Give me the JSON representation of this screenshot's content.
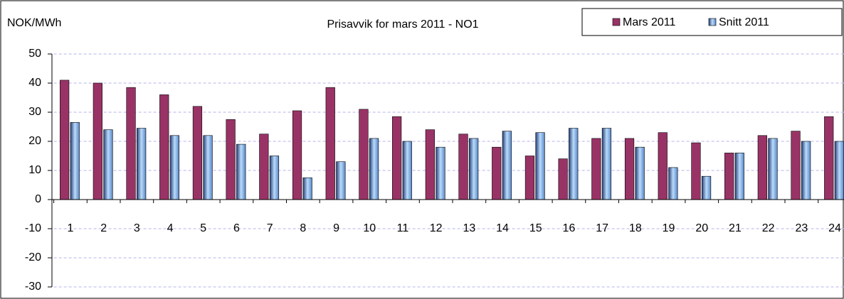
{
  "chart_data": {
    "type": "bar",
    "title": "Prisavvik for mars 2011 - NO1",
    "y_label": "NOK/MWh",
    "categories": [
      "1",
      "2",
      "3",
      "4",
      "5",
      "6",
      "7",
      "8",
      "9",
      "10",
      "11",
      "12",
      "13",
      "14",
      "15",
      "16",
      "17",
      "18",
      "19",
      "20",
      "21",
      "22",
      "23",
      "24"
    ],
    "series": [
      {
        "name": "Mars 2011",
        "color": "#993366",
        "values": [
          41,
          40,
          38.5,
          36,
          32,
          27.5,
          22.5,
          30.5,
          38.5,
          31,
          28.5,
          24,
          22.5,
          18,
          15,
          14,
          21,
          21,
          23,
          19.5,
          16,
          22,
          23.5,
          28.5
        ]
      },
      {
        "name": "Snitt 2011",
        "color": "#8fc3f0",
        "values": [
          26.5,
          24,
          24.5,
          22,
          22,
          19,
          15,
          7.5,
          13,
          21,
          20,
          18,
          21,
          23.5,
          23,
          24.5,
          24.5,
          18,
          11,
          8,
          16,
          21,
          20,
          20
        ]
      }
    ],
    "ylim": [
      -30,
      50
    ],
    "yticks": [
      -30,
      -20,
      -10,
      0,
      10,
      20,
      30,
      40,
      50
    ],
    "grid": true,
    "legend": "top-right"
  }
}
